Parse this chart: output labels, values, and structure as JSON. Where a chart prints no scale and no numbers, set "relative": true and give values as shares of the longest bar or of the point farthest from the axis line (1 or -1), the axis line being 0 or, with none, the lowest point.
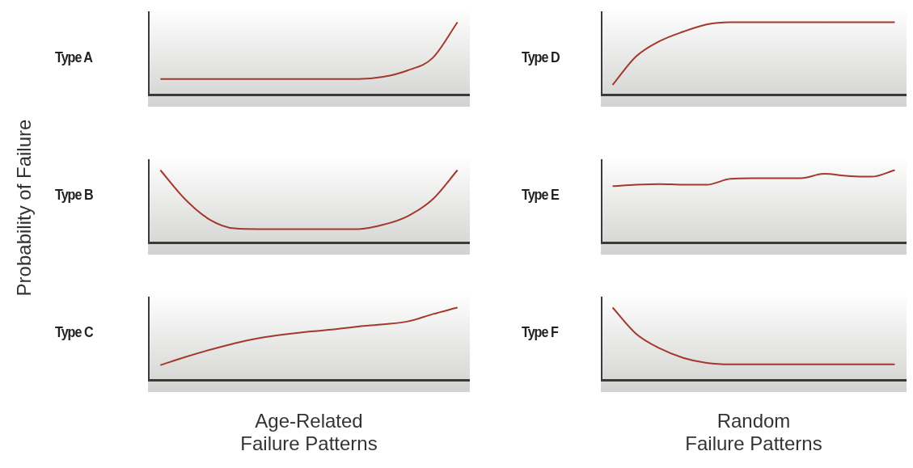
{
  "chart_data": [
    {
      "type": "line",
      "title": "Type A",
      "relative": true,
      "color": "#a3392c",
      "categories": [
        null,
        null,
        null,
        null,
        null,
        null,
        null,
        null,
        null,
        null,
        null,
        null,
        null
      ],
      "values": [
        0.22,
        0.22,
        0.22,
        0.22,
        0.22,
        0.22,
        0.22,
        0.22,
        0.22,
        0.25,
        0.34,
        0.51,
        1
      ]
    },
    {
      "type": "line",
      "title": "Type D",
      "relative": true,
      "color": "#a3392c",
      "categories": [
        null,
        null,
        null,
        null,
        null,
        null,
        null,
        null,
        null,
        null,
        null,
        null,
        null
      ],
      "values": [
        0.14,
        0.53,
        0.74,
        0.87,
        0.97,
        1,
        1,
        1,
        1,
        1,
        1,
        1,
        1
      ]
    },
    {
      "type": "line",
      "title": "Type B",
      "ylabel": "Probability of Failure",
      "relative": true,
      "color": "#a3392c",
      "categories": [
        null,
        null,
        null,
        null,
        null,
        null,
        null,
        null,
        null,
        null,
        null,
        null,
        null
      ],
      "values": [
        1,
        0.6,
        0.32,
        0.2,
        0.19,
        0.19,
        0.19,
        0.19,
        0.19,
        0.25,
        0.37,
        0.6,
        1
      ]
    },
    {
      "type": "line",
      "title": "Type E",
      "relative": true,
      "color": "#a3392c",
      "categories": [
        null,
        null,
        null,
        null,
        null,
        null,
        null,
        null,
        null,
        null,
        null,
        null,
        null
      ],
      "values": [
        0.78,
        0.8,
        0.81,
        0.8,
        0.8,
        0.88,
        0.89,
        0.89,
        0.89,
        0.95,
        0.92,
        0.91,
        1
      ]
    },
    {
      "type": "line",
      "title": "Type C",
      "xlabel": "Age-Related\nFailure Patterns",
      "relative": true,
      "color": "#a3392c",
      "categories": [
        null,
        null,
        null,
        null,
        null,
        null,
        null,
        null,
        null,
        null,
        null,
        null,
        null
      ],
      "values": [
        0.21,
        0.32,
        0.42,
        0.51,
        0.58,
        0.63,
        0.67,
        0.7,
        0.74,
        0.77,
        0.81,
        0.91,
        1
      ]
    },
    {
      "type": "line",
      "title": "Type F",
      "xlabel": "Random\nFailure Patterns",
      "relative": true,
      "color": "#a3392c",
      "categories": [
        null,
        null,
        null,
        null,
        null,
        null,
        null,
        null,
        null,
        null,
        null,
        null,
        null
      ],
      "values": [
        1,
        0.64,
        0.44,
        0.31,
        0.24,
        0.22,
        0.22,
        0.22,
        0.22,
        0.22,
        0.22,
        0.22,
        0.22
      ]
    }
  ]
}
